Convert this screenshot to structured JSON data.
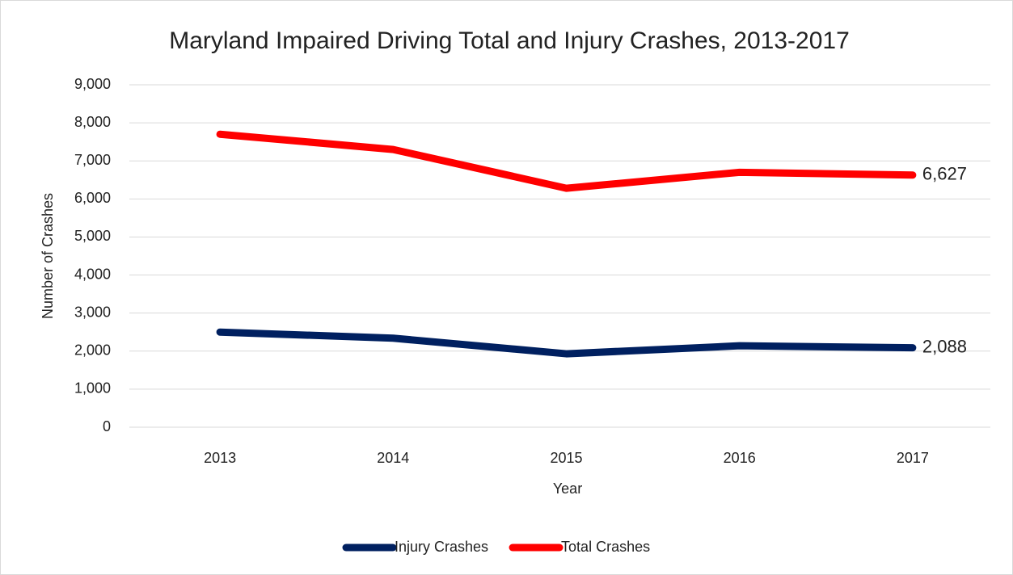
{
  "chart_data": {
    "type": "line",
    "title": "Maryland Impaired Driving Total and Injury Crashes, 2013-2017",
    "x_label": "Year",
    "y_label": "Number of Crashes",
    "categories": [
      "2013",
      "2014",
      "2015",
      "2016",
      "2017"
    ],
    "series": [
      {
        "name": "Injury Crashes",
        "color": "#002060",
        "values": [
          2500,
          2340,
          1930,
          2140,
          2088
        ],
        "value_labels": [
          null,
          null,
          null,
          null,
          "2,088"
        ]
      },
      {
        "name": "Total Crashes",
        "color": "#ff0000",
        "values": [
          7700,
          7300,
          6280,
          6700,
          6627
        ],
        "value_labels": [
          null,
          null,
          null,
          null,
          "6,627"
        ]
      }
    ],
    "ylim": [
      0,
      9000
    ],
    "yticks": [
      0,
      {
        "value": 1000,
        "label": "1,000"
      },
      {
        "value": 2000,
        "label": "2,000"
      },
      {
        "value": 3000,
        "label": "3,000"
      },
      {
        "value": 4000,
        "label": "4,000"
      },
      {
        "value": 5000,
        "label": "5,000"
      },
      {
        "value": 6000,
        "label": "6,000"
      },
      {
        "value": 7000,
        "label": "7,000"
      },
      {
        "value": 8000,
        "label": "8,000"
      },
      {
        "value": 9000,
        "label": "9,000"
      }
    ],
    "grid": true,
    "legend": "bottom"
  }
}
